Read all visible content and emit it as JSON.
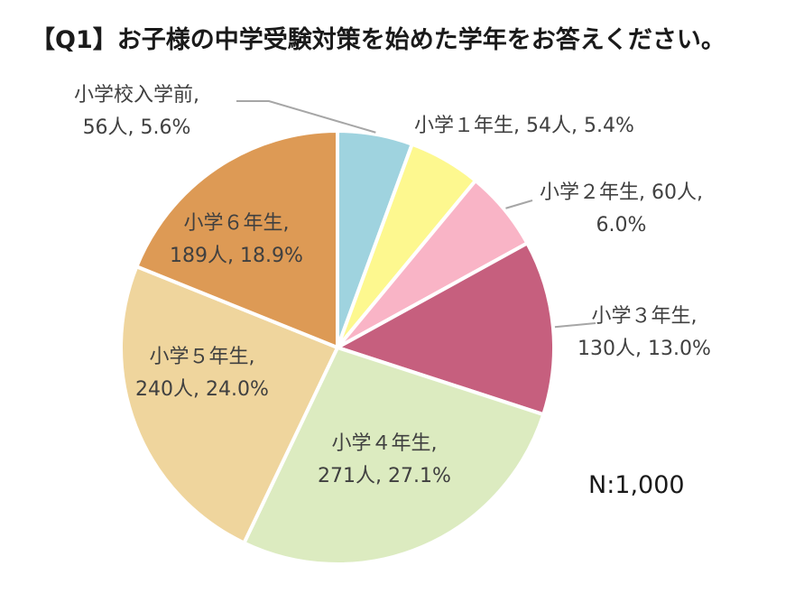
{
  "chart_data": {
    "type": "pie",
    "title": "【Q1】お子様の中学受験対策を始めた学年をお答えください。",
    "note": "N:1,000",
    "categories": [
      "小学校入学前",
      "小学１年生",
      "小学２年生",
      "小学３年生",
      "小学４年生",
      "小学５年生",
      "小学６年生"
    ],
    "counts": [
      56,
      54,
      60,
      130,
      271,
      240,
      189
    ],
    "values": [
      5.6,
      5.4,
      6.0,
      13.0,
      27.1,
      24.0,
      18.9
    ],
    "colors": [
      "#9fd3df",
      "#fdf88f",
      "#f9b4c6",
      "#c65f7e",
      "#dcebc0",
      "#efd59d",
      "#dd9a55"
    ],
    "legend": "none",
    "labels": [
      {
        "line1": "小学校入学前,",
        "line2": "56人, 5.6%"
      },
      {
        "line1": "小学１年生, 54人, 5.4%"
      },
      {
        "line1": "小学２年生, 60人,",
        "line2": "6.0%"
      },
      {
        "line1": "小学３年生,",
        "line2": "130人, 13.0%"
      },
      {
        "line1": "小学４年生,",
        "line2": "271人, 27.1%"
      },
      {
        "line1": "小学５年生,",
        "line2": "240人, 24.0%"
      },
      {
        "line1": "小学６年生,",
        "line2": "189人, 18.9%"
      }
    ]
  }
}
